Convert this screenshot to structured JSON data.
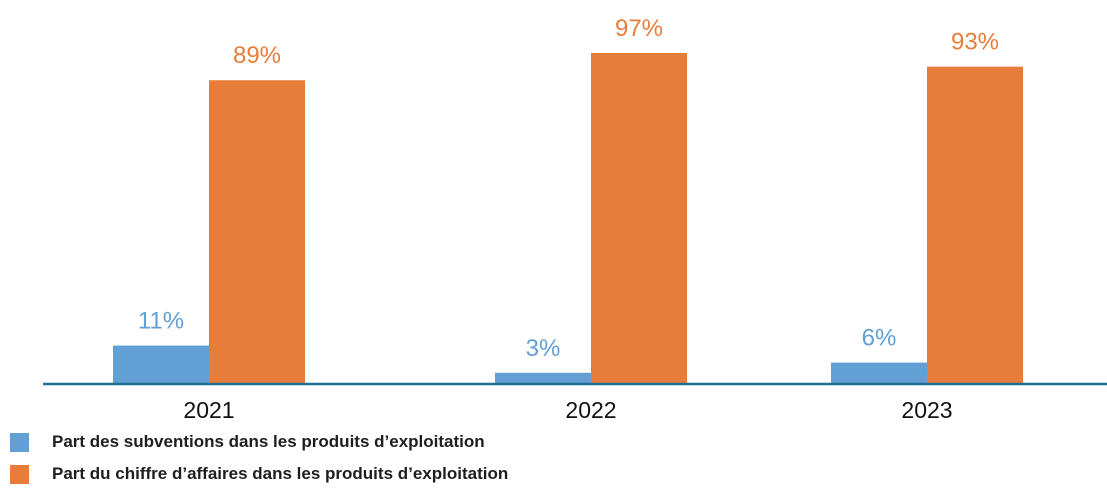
{
  "colors": {
    "subsidies": "#629fd4",
    "revenue": "#e87d3b",
    "baseline": "#1f6f94",
    "category_text": "#111111"
  },
  "chart_data": {
    "type": "bar",
    "categories": [
      "2021",
      "2022",
      "2023"
    ],
    "series": [
      {
        "name": "Part des subventions dans les produits d’exploitation",
        "values": [
          11,
          3,
          6
        ],
        "labels": [
          "11%",
          "3%",
          "6%"
        ],
        "color": "#629fd4"
      },
      {
        "name": "Part du chiffre d’affaires dans les produits d’exploitation",
        "values": [
          89,
          97,
          93
        ],
        "labels": [
          "89%",
          "97%",
          "93%"
        ],
        "color": "#e87d3b"
      }
    ],
    "ylim": [
      0,
      100
    ],
    "grid": false,
    "legend": "bottom-left",
    "title": "",
    "xlabel": "",
    "ylabel": ""
  }
}
